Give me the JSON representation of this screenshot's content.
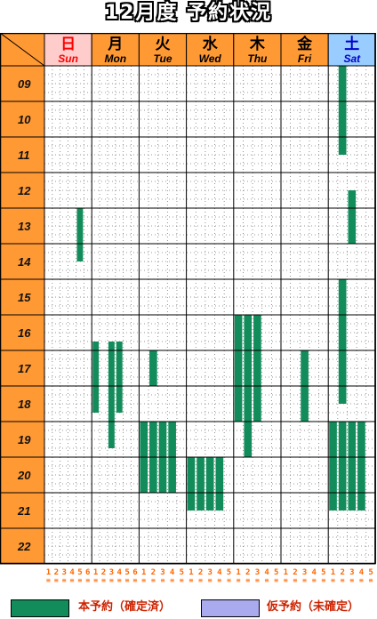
{
  "title": "12月度 予約状況",
  "days": [
    {
      "kanji": "日",
      "en": "Sun",
      "kind": "sun"
    },
    {
      "kanji": "月",
      "en": "Mon",
      "kind": "weekday"
    },
    {
      "kanji": "火",
      "en": "Tue",
      "kind": "weekday"
    },
    {
      "kanji": "水",
      "en": "Wed",
      "kind": "weekday"
    },
    {
      "kanji": "木",
      "en": "Thu",
      "kind": "weekday"
    },
    {
      "kanji": "金",
      "en": "Fri",
      "kind": "weekday"
    },
    {
      "kanji": "土",
      "en": "Sat",
      "kind": "sat"
    }
  ],
  "hours": [
    "09",
    "10",
    "11",
    "12",
    "13",
    "14",
    "15",
    "16",
    "17",
    "18",
    "19",
    "20",
    "21",
    "22"
  ],
  "courts_per_day": [
    6,
    6,
    5,
    5,
    5,
    5,
    5
  ],
  "reservations": [
    {
      "day": 0,
      "court": 5,
      "start": 13.0,
      "end": 14.5
    },
    {
      "day": 1,
      "court": 1,
      "start": 16.75,
      "end": 18.75
    },
    {
      "day": 1,
      "court": 3,
      "start": 16.75,
      "end": 19.75
    },
    {
      "day": 1,
      "court": 4,
      "start": 16.75,
      "end": 18.75
    },
    {
      "day": 2,
      "court": 1,
      "start": 19.0,
      "end": 21.0
    },
    {
      "day": 2,
      "court": 2,
      "start": 19.0,
      "end": 21.0
    },
    {
      "day": 2,
      "court": 3,
      "start": 19.0,
      "end": 21.0
    },
    {
      "day": 2,
      "court": 4,
      "start": 19.0,
      "end": 21.0
    },
    {
      "day": 2,
      "court": 2,
      "start": 17.0,
      "end": 18.0
    },
    {
      "day": 3,
      "court": 1,
      "start": 20.0,
      "end": 21.5
    },
    {
      "day": 3,
      "court": 2,
      "start": 20.0,
      "end": 21.5
    },
    {
      "day": 3,
      "court": 3,
      "start": 20.0,
      "end": 21.5
    },
    {
      "day": 3,
      "court": 4,
      "start": 20.0,
      "end": 21.5
    },
    {
      "day": 4,
      "court": 1,
      "start": 16.0,
      "end": 19.0
    },
    {
      "day": 4,
      "court": 2,
      "start": 16.0,
      "end": 19.0
    },
    {
      "day": 4,
      "court": 3,
      "start": 16.0,
      "end": 19.0
    },
    {
      "day": 4,
      "court": 2,
      "start": 19.0,
      "end": 20.0
    },
    {
      "day": 5,
      "court": 3,
      "start": 17.0,
      "end": 19.0
    },
    {
      "day": 6,
      "court": 2,
      "start": 9.0,
      "end": 11.5
    },
    {
      "day": 6,
      "court": 3,
      "start": 12.5,
      "end": 14.0
    },
    {
      "day": 6,
      "court": 2,
      "start": 15.0,
      "end": 18.5
    },
    {
      "day": 6,
      "court": 1,
      "start": 19.0,
      "end": 21.5
    },
    {
      "day": 6,
      "court": 2,
      "start": 19.0,
      "end": 21.5
    },
    {
      "day": 6,
      "court": 3,
      "start": 19.0,
      "end": 21.5
    },
    {
      "day": 6,
      "court": 4,
      "start": 19.0,
      "end": 21.5
    }
  ],
  "colors": {
    "confirmed": "#118c5a",
    "tentative": "#aaaaee",
    "header_orange": "#ff9933",
    "sun_bg": "#ffcccc",
    "sun_text": "#ff0000",
    "sat_bg": "#99ccff",
    "sat_text": "#0000cc",
    "court_number": "#ff6600"
  },
  "legend": {
    "confirmed_label": "本予約（確定済）",
    "tentative_label": "仮予約（未確定）"
  }
}
